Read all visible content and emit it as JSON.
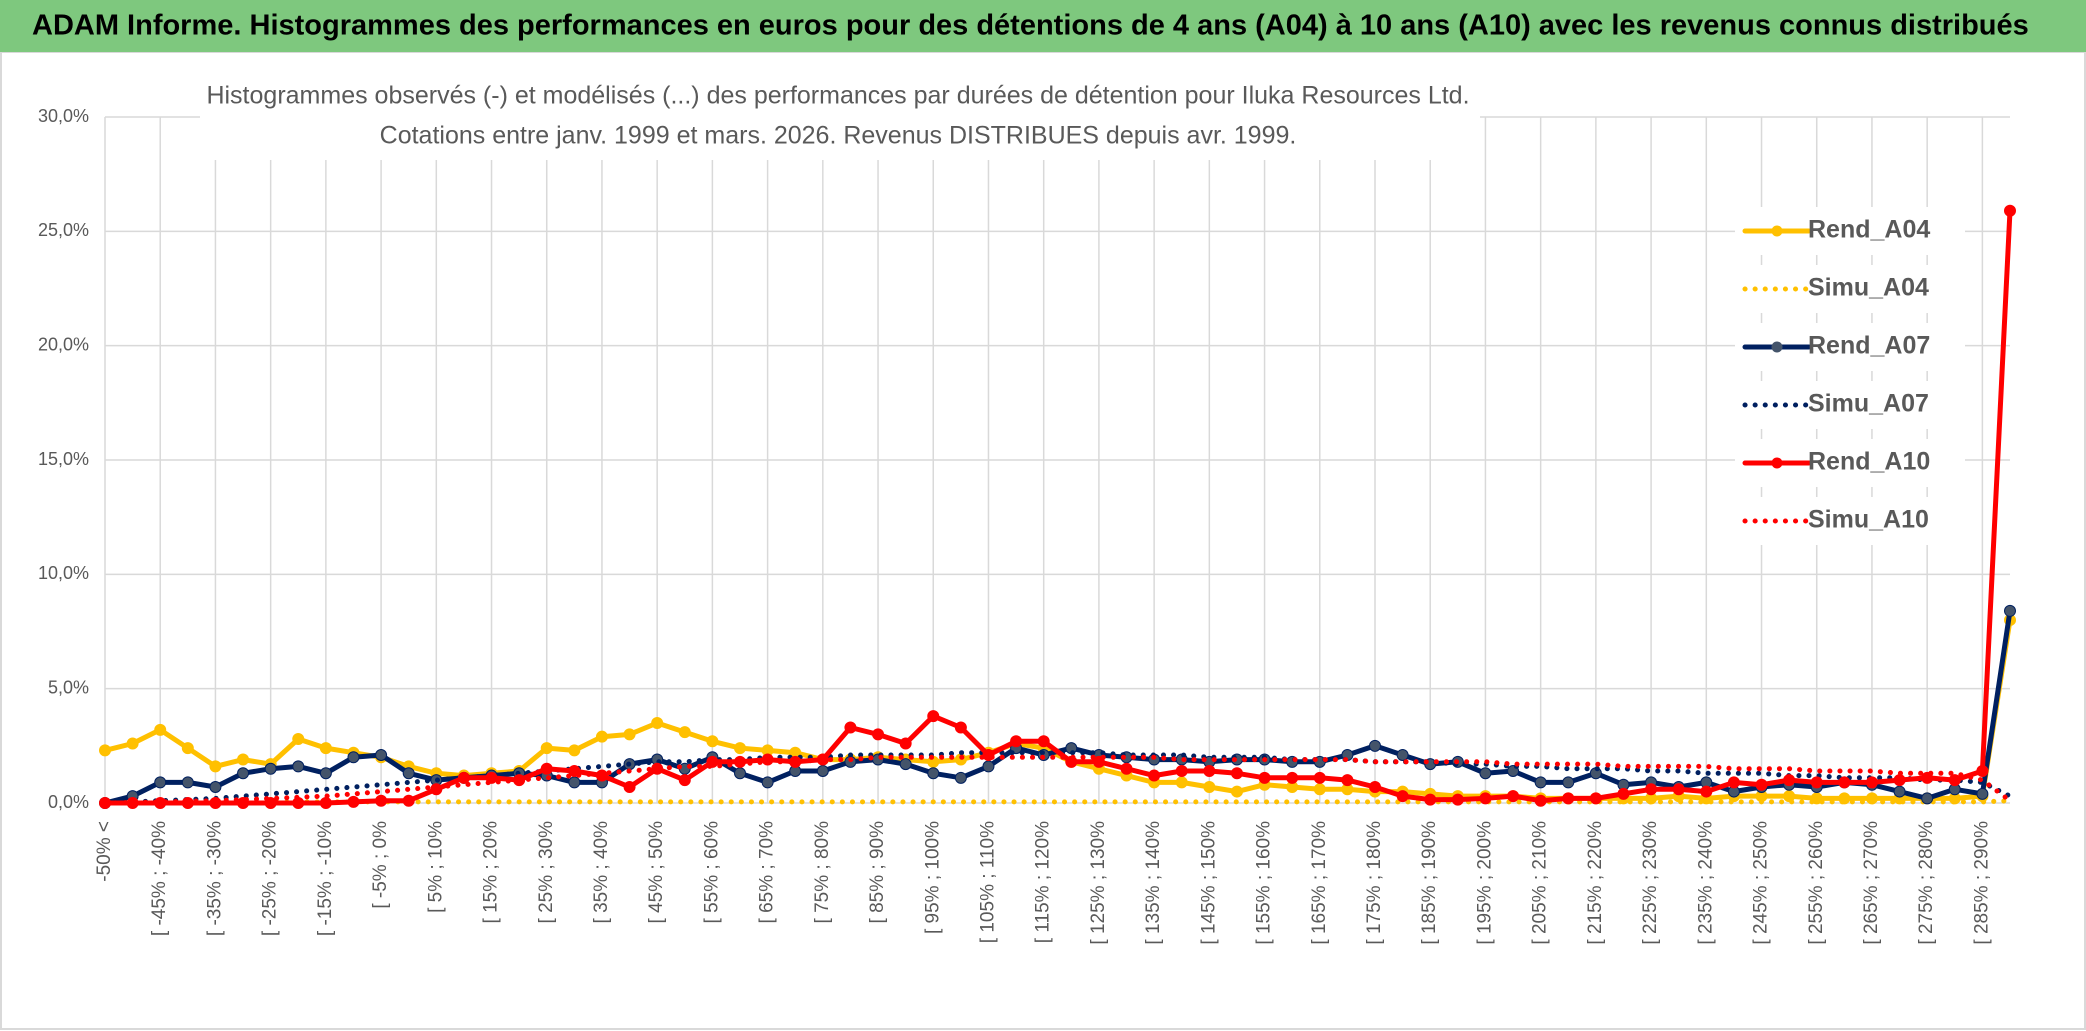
{
  "header": {
    "title": "ADAM Informe. Histogrammes des performances en euros pour des détentions de 4 ans (A04) à 10 ans (A10) avec les revenus connus distribués"
  },
  "chart_data": {
    "type": "line",
    "title": "Histogrammes observés (-) et modélisés (...) des performances par durées de détention pour Iluka Resources Ltd.",
    "subtitle": "Cotations entre janv. 1999 et mars. 2026. Revenus DISTRIBUES depuis avr. 1999.",
    "categories": [
      "-50% <",
      null,
      "[ -45% ; -40%",
      null,
      "[ -35% ; -30%",
      null,
      "[ -25% ; -20%",
      null,
      "[ -15% ; -10%",
      null,
      "[ -5% ; 0%",
      null,
      "[ 5% ; 10%",
      null,
      "[ 15% ; 20%",
      null,
      "[ 25% ; 30%",
      null,
      "[ 35% ; 40%",
      null,
      "[ 45% ; 50%",
      null,
      "[ 55% ; 60%",
      null,
      "[ 65% ; 70%",
      null,
      "[ 75% ; 80%",
      null,
      "[ 85% ; 90%",
      null,
      "[ 95% ; 100%",
      null,
      "[ 105% ; 110%",
      null,
      "[ 115% ; 120%",
      null,
      "[ 125% ; 130%",
      null,
      "[ 135% ; 140%",
      null,
      "[ 145% ; 150%",
      null,
      "[ 155% ; 160%",
      null,
      "[ 165% ; 170%",
      null,
      "[ 175% ; 180%",
      null,
      "[ 185% ; 190%",
      null,
      "[ 195% ; 200%",
      null,
      "[ 205% ; 210%",
      null,
      "[ 215% ; 220%",
      null,
      "[ 225% ; 230%",
      null,
      "[ 235% ; 240%",
      null,
      "[ 245% ; 250%",
      null,
      "[ 255% ; 260%",
      null,
      "[ 265% ; 270%",
      null,
      "[ 275% ; 280%",
      null,
      "[ 285% ; 290%",
      null
    ],
    "series": [
      {
        "name": "Rend_A04",
        "color": "#ffc000",
        "dash": "solid",
        "markers": true,
        "marker_color": "#ffc000",
        "values": [
          2.3,
          2.6,
          3.2,
          2.4,
          1.6,
          1.9,
          1.7,
          2.8,
          2.4,
          2.2,
          2.0,
          1.6,
          1.3,
          1.2,
          1.3,
          1.4,
          2.4,
          2.3,
          2.9,
          3.0,
          3.5,
          3.1,
          2.7,
          2.4,
          2.3,
          2.2,
          1.9,
          1.9,
          2.0,
          1.9,
          1.8,
          1.9,
          2.2,
          2.6,
          2.4,
          1.8,
          1.5,
          1.2,
          0.9,
          0.9,
          0.7,
          0.5,
          0.8,
          0.7,
          0.6,
          0.6,
          0.5,
          0.5,
          0.4,
          0.3,
          0.3,
          0.3,
          0.2,
          0.2,
          0.2,
          0.2,
          0.2,
          0.3,
          0.2,
          0.3,
          0.3,
          0.3,
          0.2,
          0.2,
          0.2,
          0.2,
          0.2,
          0.2,
          0.3,
          8.0
        ]
      },
      {
        "name": "Simu_A04",
        "color": "#ffc000",
        "dash": "dotted",
        "markers": false,
        "values": [
          0.05,
          0.05,
          0.05,
          0.05,
          0.05,
          0.05,
          0.05,
          0.05,
          0.05,
          0.05,
          0.05,
          0.05,
          0.05,
          0.05,
          0.05,
          0.05,
          0.05,
          0.05,
          0.05,
          0.05,
          0.05,
          0.05,
          0.05,
          0.05,
          0.05,
          0.05,
          0.05,
          0.05,
          0.05,
          0.05,
          0.05,
          0.05,
          0.05,
          0.05,
          0.05,
          0.05,
          0.05,
          0.05,
          0.05,
          0.05,
          0.05,
          0.05,
          0.05,
          0.05,
          0.05,
          0.05,
          0.05,
          0.05,
          0.05,
          0.05,
          0.05,
          0.05,
          0.05,
          0.05,
          0.05,
          0.05,
          0.05,
          0.05,
          0.05,
          0.05,
          0.05,
          0.05,
          0.05,
          0.05,
          0.05,
          0.05,
          0.05,
          0.05,
          0.05,
          0.1
        ]
      },
      {
        "name": "Rend_A07",
        "color": "#002060",
        "dash": "solid",
        "markers": true,
        "marker_color": "#44546a",
        "values": [
          0,
          0.3,
          0.9,
          0.9,
          0.7,
          1.3,
          1.5,
          1.6,
          1.3,
          2.0,
          2.1,
          1.3,
          1.0,
          1.1,
          1.2,
          1.3,
          1.2,
          0.9,
          0.9,
          1.7,
          1.9,
          1.5,
          2.0,
          1.3,
          0.9,
          1.4,
          1.4,
          1.8,
          1.9,
          1.7,
          1.3,
          1.1,
          1.6,
          2.4,
          2.1,
          2.4,
          2.1,
          2.0,
          1.9,
          1.9,
          1.8,
          1.9,
          1.9,
          1.8,
          1.8,
          2.1,
          2.5,
          2.1,
          1.7,
          1.8,
          1.3,
          1.4,
          0.9,
          0.9,
          1.3,
          0.8,
          0.9,
          0.7,
          0.9,
          0.5,
          0.7,
          0.8,
          0.7,
          0.9,
          0.8,
          0.5,
          0.2,
          0.6,
          0.4,
          8.4
        ]
      },
      {
        "name": "Simu_A07",
        "color": "#002060",
        "dash": "dotted",
        "markers": false,
        "values": [
          0,
          0.05,
          0.1,
          0.15,
          0.2,
          0.3,
          0.4,
          0.5,
          0.6,
          0.7,
          0.8,
          0.9,
          1.0,
          1.1,
          1.2,
          1.3,
          1.4,
          1.5,
          1.6,
          1.7,
          1.8,
          1.8,
          1.9,
          1.9,
          2.0,
          2.0,
          2.0,
          2.1,
          2.1,
          2.1,
          2.1,
          2.2,
          2.2,
          2.2,
          2.2,
          2.2,
          2.2,
          2.1,
          2.1,
          2.1,
          2.0,
          2.0,
          2.0,
          1.9,
          1.9,
          1.9,
          1.8,
          1.8,
          1.8,
          1.7,
          1.7,
          1.6,
          1.6,
          1.5,
          1.5,
          1.5,
          1.4,
          1.4,
          1.3,
          1.3,
          1.3,
          1.2,
          1.2,
          1.1,
          1.1,
          1.1,
          1.0,
          1.0,
          0.9,
          0.3
        ]
      },
      {
        "name": "Rend_A10",
        "color": "#ff0000",
        "dash": "solid",
        "markers": true,
        "marker_color": "#ff0000",
        "values": [
          0,
          0,
          0,
          0,
          0,
          0,
          0,
          0,
          0,
          0.05,
          0.1,
          0.1,
          0.6,
          1.1,
          1.1,
          1.0,
          1.5,
          1.4,
          1.2,
          0.7,
          1.5,
          1.0,
          1.8,
          1.8,
          1.9,
          1.8,
          1.9,
          3.3,
          3.0,
          2.6,
          3.8,
          3.3,
          2.1,
          2.7,
          2.7,
          1.8,
          1.8,
          1.5,
          1.2,
          1.4,
          1.4,
          1.3,
          1.1,
          1.1,
          1.1,
          1.0,
          0.7,
          0.3,
          0.15,
          0.15,
          0.2,
          0.3,
          0.1,
          0.2,
          0.2,
          0.4,
          0.6,
          0.6,
          0.5,
          0.9,
          0.8,
          1.0,
          0.9,
          0.9,
          0.9,
          1.0,
          1.1,
          1.0,
          1.4,
          25.9
        ]
      },
      {
        "name": "Simu_A10",
        "color": "#ff0000",
        "dash": "dotted",
        "markers": false,
        "values": [
          0,
          0.02,
          0.05,
          0.08,
          0.1,
          0.15,
          0.2,
          0.25,
          0.3,
          0.4,
          0.5,
          0.6,
          0.7,
          0.8,
          0.9,
          1.0,
          1.1,
          1.2,
          1.3,
          1.4,
          1.5,
          1.6,
          1.6,
          1.7,
          1.8,
          1.8,
          1.9,
          1.9,
          2.0,
          2.0,
          2.0,
          2.0,
          2.0,
          2.0,
          2.0,
          2.0,
          2.0,
          2.0,
          2.0,
          1.9,
          1.9,
          1.9,
          1.9,
          1.9,
          1.9,
          1.9,
          1.8,
          1.8,
          1.8,
          1.8,
          1.8,
          1.7,
          1.7,
          1.7,
          1.7,
          1.6,
          1.6,
          1.6,
          1.6,
          1.5,
          1.5,
          1.5,
          1.4,
          1.4,
          1.4,
          1.3,
          1.3,
          1.3,
          1.0,
          0.1
        ]
      }
    ],
    "ylim": [
      0,
      30
    ],
    "yticks": [
      {
        "value": 0,
        "label": "0,0%"
      },
      {
        "value": 5,
        "label": "5,0%"
      },
      {
        "value": 10,
        "label": "10,0%"
      },
      {
        "value": 15,
        "label": "15,0%"
      },
      {
        "value": 20,
        "label": "20,0%"
      },
      {
        "value": 25,
        "label": "25,0%"
      },
      {
        "value": 30,
        "label": "30,0%"
      }
    ],
    "grid": true,
    "legend": "right"
  }
}
